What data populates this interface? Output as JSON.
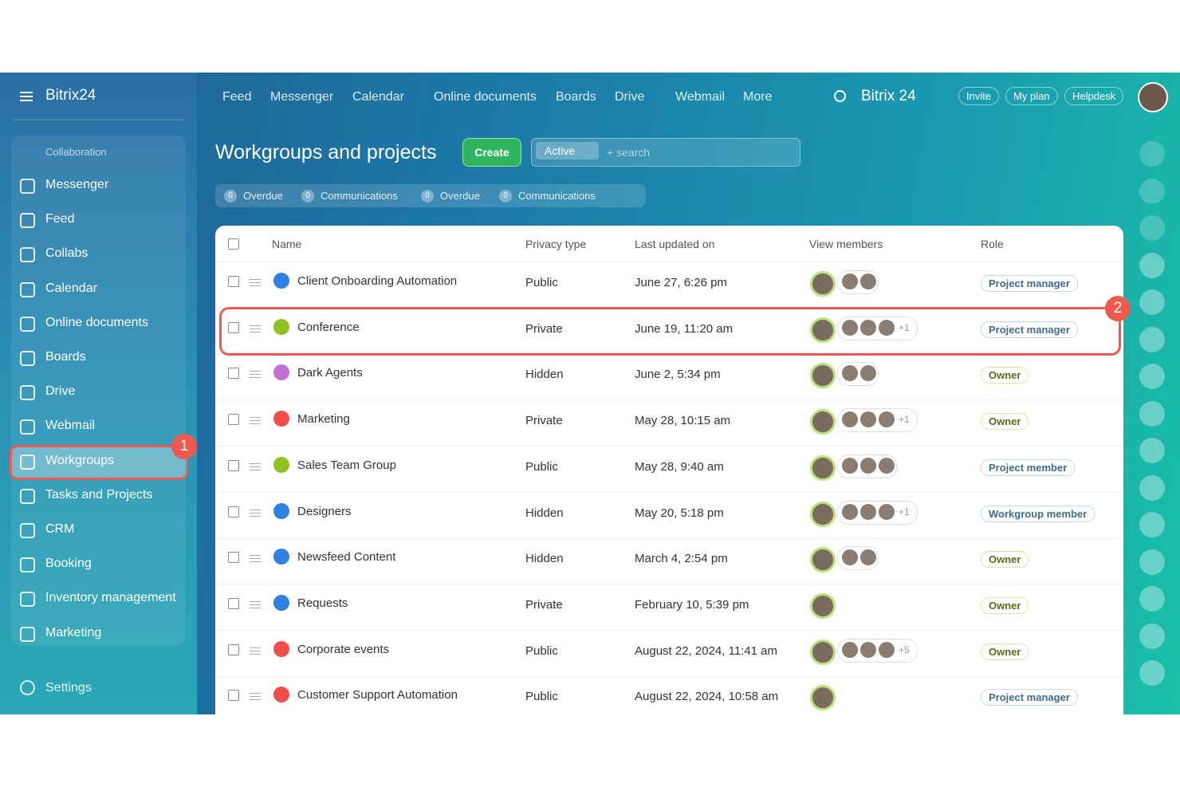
{
  "header": {
    "logo": "Bitrix24",
    "nav": [
      "Feed",
      "Messenger",
      "Calendar",
      "Online documents",
      "Boards",
      "Drive",
      "Webmail",
      "More"
    ],
    "brand": "Bitrix 24",
    "buttons": [
      "Invite",
      "My plan",
      "Helpdesk"
    ]
  },
  "sidebar": {
    "section": "Collaboration",
    "items": [
      "Messenger",
      "Feed",
      "Collabs",
      "Calendar",
      "Online documents",
      "Boards",
      "Drive",
      "Webmail",
      "Workgroups",
      "Tasks and Projects",
      "CRM",
      "Booking",
      "Inventory management",
      "Marketing"
    ],
    "settings": "Settings"
  },
  "page": {
    "title": "Workgroups and projects",
    "create": "Create",
    "filter_chip": "Active",
    "search": "+ search",
    "counters": [
      {
        "count": "0",
        "label": "Overdue"
      },
      {
        "count": "0",
        "label": "Communications"
      },
      {
        "count": "0",
        "label": "Overdue"
      },
      {
        "count": "0",
        "label": "Communications"
      }
    ]
  },
  "table": {
    "headers": [
      "Name",
      "Privacy type",
      "Last updated on",
      "View members",
      "Role"
    ],
    "rows": [
      {
        "name": "Client Onboarding Automation",
        "privacy": "Public",
        "updated": "June 27, 6:26 pm",
        "role": "Project manager",
        "icon_color": "#2f80e0",
        "avatars": 2,
        "extra": null
      },
      {
        "name": "Conference",
        "privacy": "Private",
        "updated": "June 19, 11:20 am",
        "role": "Project manager",
        "icon_color": "#8dc21f",
        "avatars": 3,
        "extra": "+1"
      },
      {
        "name": "Dark Agents",
        "privacy": "Hidden",
        "updated": "June 2, 5:34 pm",
        "role": "Owner",
        "icon_color": "#c36fd6",
        "avatars": 2,
        "extra": null
      },
      {
        "name": "Marketing",
        "privacy": "Private",
        "updated": "May 28, 10:15 am",
        "role": "Owner",
        "icon_color": "#ef4e4a",
        "avatars": 3,
        "extra": "+1"
      },
      {
        "name": "Sales Team Group",
        "privacy": "Public",
        "updated": "May 28, 9:40 am",
        "role": "Project member",
        "icon_color": "#8dc21f",
        "avatars": 3,
        "extra": null
      },
      {
        "name": "Designers",
        "privacy": "Hidden",
        "updated": "May 20, 5:18 pm",
        "role": "Workgroup member",
        "icon_color": "#2f80e0",
        "avatars": 3,
        "extra": "+1"
      },
      {
        "name": "Newsfeed Content",
        "privacy": "Hidden",
        "updated": "March 4, 2:54 pm",
        "role": "Owner",
        "icon_color": "#2f80e0",
        "avatars": 2,
        "extra": null
      },
      {
        "name": "Requests",
        "privacy": "Private",
        "updated": "February 10, 5:39 pm",
        "role": "Owner",
        "icon_color": "#2f80e0",
        "avatars": 0,
        "extra": null
      },
      {
        "name": "Corporate events",
        "privacy": "Public",
        "updated": "August 22, 2024, 11:41 am",
        "role": "Owner",
        "icon_color": "#ef4e4a",
        "avatars": 3,
        "extra": "+5"
      },
      {
        "name": "Customer Support Automation",
        "privacy": "Public",
        "updated": "August 22, 2024, 10:58 am",
        "role": "Project manager",
        "icon_color": "#ef4e4a",
        "avatars": 0,
        "extra": null
      }
    ]
  },
  "callouts": [
    "1",
    "2"
  ]
}
